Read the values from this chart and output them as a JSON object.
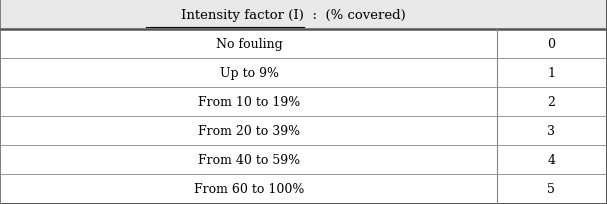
{
  "title_underlined": "Intensity factor (I)",
  "title_rest": "  :  (% covered)",
  "rows": [
    [
      "No fouling",
      "0"
    ],
    [
      "Up to 9%",
      "1"
    ],
    [
      "From 10 to 19%",
      "2"
    ],
    [
      "From 20 to 39%",
      "3"
    ],
    [
      "From 40 to 59%",
      "4"
    ],
    [
      "From 60 to 100%",
      "5"
    ]
  ],
  "header_bg": "#e8e8e8",
  "body_bg": "#ffffff",
  "outer_border_color": "#555555",
  "inner_border_color": "#888888",
  "text_color": "#000000",
  "font_size": 9,
  "title_font_size": 9.5,
  "col_split": 0.82,
  "fig_width": 6.07,
  "fig_height": 2.05,
  "outer_lw": 1.8,
  "header_lw": 1.8,
  "inner_lw": 0.6,
  "vert_lw": 0.8
}
